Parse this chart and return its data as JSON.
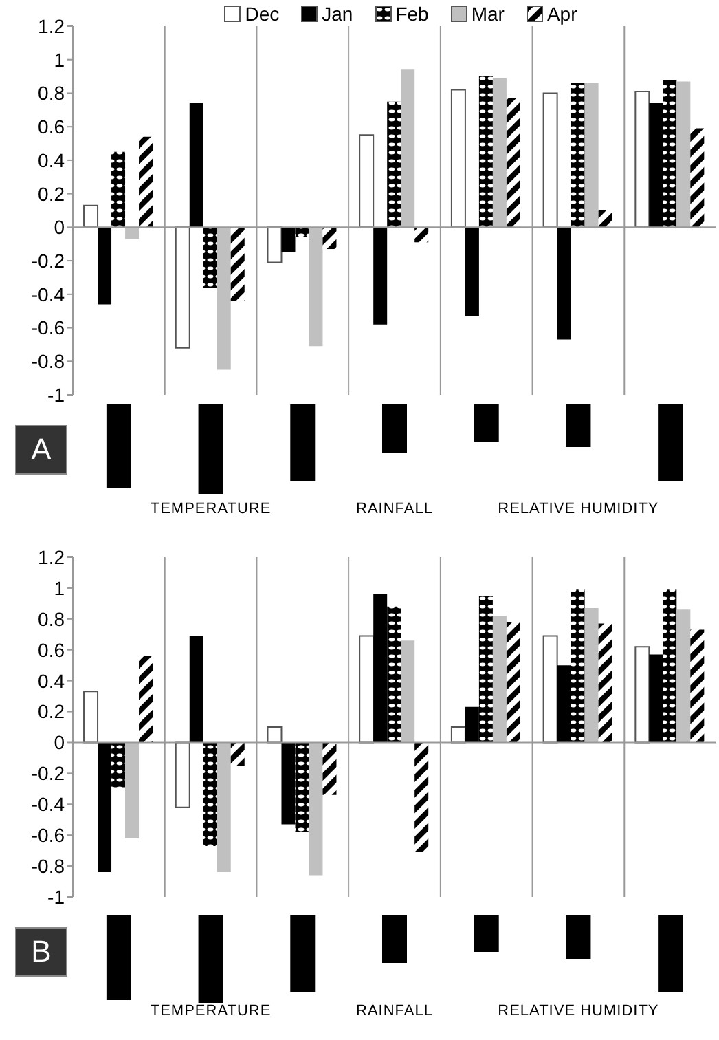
{
  "chart_data": [
    {
      "type": "bar",
      "categories": [
        null,
        "TEMPERATURE",
        null,
        "RAINFALL",
        null,
        "RELATIVE HUMIDITY",
        null
      ],
      "ylim": [
        -1,
        1.2
      ],
      "yticks": [
        -1,
        -0.8,
        -0.6,
        -0.4,
        -0.2,
        0,
        0.2,
        0.4,
        0.6,
        0.8,
        1,
        1.2
      ],
      "grid": "x",
      "legend": "top",
      "annotations": [
        "A"
      ],
      "ref_lines": [
        {
          "axis": "y",
          "value": 0,
          "color": "#999999"
        }
      ],
      "series": [
        {
          "name": "Dec",
          "color": "#ffffff",
          "values": [
            0.13,
            -0.72,
            -0.21,
            0.55,
            0.82,
            0.8,
            0.81
          ]
        },
        {
          "name": "Jan",
          "color": "#000000",
          "values": [
            -0.46,
            0.74,
            -0.15,
            -0.58,
            -0.53,
            -0.67,
            0.74
          ]
        },
        {
          "name": "Feb",
          "color": "#000000",
          "values": [
            0.45,
            -0.36,
            -0.06,
            0.75,
            0.9,
            0.86,
            0.88
          ]
        },
        {
          "name": "Mar",
          "color": "#c0c0c0",
          "values": [
            -0.07,
            -0.85,
            -0.71,
            0.94,
            0.89,
            0.86,
            0.87
          ]
        },
        {
          "name": "Apr",
          "color": "#000000",
          "values": [
            0.54,
            -0.44,
            -0.13,
            -0.09,
            0.77,
            0.1,
            0.59
          ]
        }
      ]
    },
    {
      "type": "bar",
      "categories": [
        null,
        "TEMPERATURE",
        null,
        "RAINFALL",
        null,
        "RELATIVE HUMIDITY",
        null
      ],
      "ylim": [
        -1,
        1.2
      ],
      "yticks": [
        -1,
        -0.8,
        -0.6,
        -0.4,
        -0.2,
        0,
        0.2,
        0.4,
        0.6,
        0.8,
        1,
        1.2
      ],
      "grid": "x",
      "annotations": [
        "B"
      ],
      "ref_lines": [
        {
          "axis": "y",
          "value": 0,
          "color": "#999999"
        }
      ],
      "series": [
        {
          "color": "#ffffff",
          "values": [
            0.33,
            -0.42,
            0.1,
            0.69,
            0.1,
            0.69,
            0.62
          ]
        },
        {
          "color": "#000000",
          "values": [
            -0.84,
            0.69,
            -0.53,
            0.96,
            0.23,
            0.5,
            0.57
          ]
        },
        {
          "color": "#000000",
          "values": [
            -0.29,
            -0.67,
            -0.58,
            0.88,
            0.95,
            0.99,
            0.99
          ]
        },
        {
          "color": "#c0c0c0",
          "values": [
            -0.62,
            -0.84,
            -0.86,
            0.66,
            0.82,
            0.87,
            0.86
          ]
        },
        {
          "color": "#000000",
          "values": [
            0.56,
            -0.15,
            -0.34,
            -0.71,
            0.78,
            0.77,
            0.73
          ]
        }
      ]
    }
  ]
}
